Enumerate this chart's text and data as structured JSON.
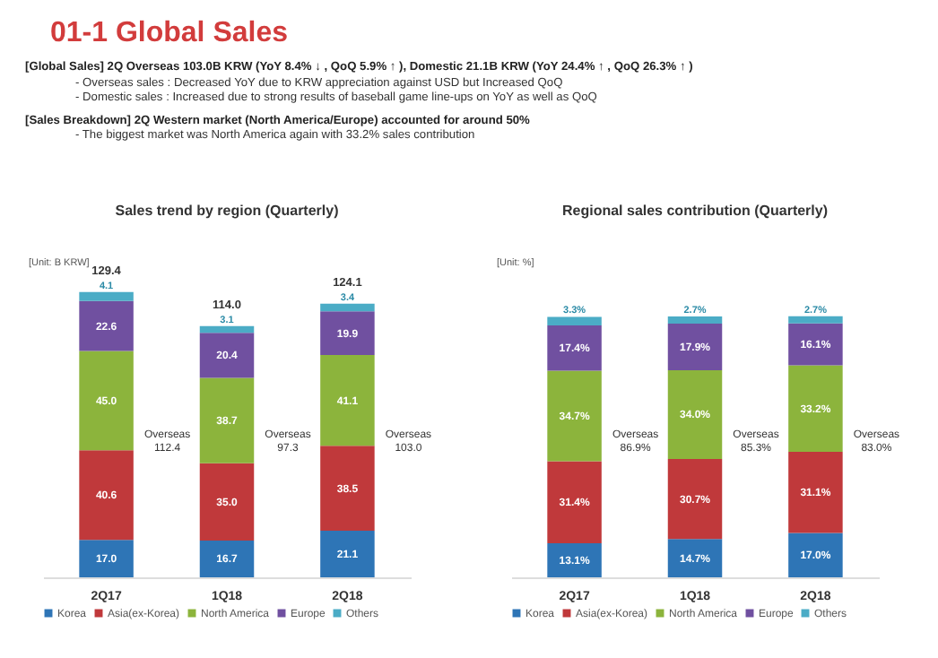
{
  "chart_data": [
    {
      "type": "other",
      "title": "01-1 Global Sales",
      "annotations": [
        "[Global Sales] 2Q Overseas 103.0B KRW (YoY 8.4% ↓ , QoQ 5.9% ↑ ), Domestic 21.1B KRW (YoY 24.4% ↑ , QoQ 26.3% ↑ )",
        "- Overseas sales : Decreased YoY due to KRW appreciation against USD but Increased QoQ",
        "- Domestic sales : Increased due to strong results of baseball game line-ups on YoY as well as QoQ",
        "[Sales Breakdown] 2Q Western market (North America/Europe) accounted for around 50%",
        "- The biggest market was North America again with 33.2% sales contribution"
      ]
    },
    {
      "type": "bar",
      "stacked": true,
      "title": "Sales trend by region (Quarterly)",
      "categories": [
        "2Q17",
        "1Q18",
        "2Q18"
      ],
      "legend": "bottom",
      "totals": [
        "129.4",
        "114.0",
        "124.1"
      ],
      "series": [
        {
          "name": "Korea",
          "color": "#2e75b6",
          "values": [
            17.0,
            16.7,
            21.1
          ],
          "value_labels": [
            "17.0",
            "16.7",
            "21.1"
          ]
        },
        {
          "name": "Asia(ex-Korea)",
          "color": "#c0393b",
          "values": [
            40.6,
            35.0,
            38.5
          ],
          "value_labels": [
            "40.6",
            "35.0",
            "38.5"
          ]
        },
        {
          "name": "North America",
          "color": "#8cb43c",
          "values": [
            45.0,
            38.7,
            41.1
          ],
          "value_labels": [
            "45.0",
            "38.7",
            "41.1"
          ]
        },
        {
          "name": "Europe",
          "color": "#7050a0",
          "values": [
            22.6,
            20.4,
            19.9
          ],
          "value_labels": [
            "22.6",
            "20.4",
            "19.9"
          ]
        },
        {
          "name": "Others",
          "color": "#4bacc6",
          "values": [
            4.1,
            3.1,
            3.4
          ],
          "value_labels": [
            "4.1",
            "3.1",
            "3.4"
          ]
        }
      ],
      "annotations": [
        "[Unit: B KRW]",
        "Overseas 112.4",
        "Overseas 97.3",
        "Overseas 103.0"
      ]
    },
    {
      "type": "bar",
      "stacked": true,
      "title": "Regional sales contribution (Quarterly)",
      "categories": [
        "2Q17",
        "1Q18",
        "2Q18"
      ],
      "legend": "bottom",
      "series": [
        {
          "name": "Korea",
          "color": "#2e75b6",
          "values": [
            13.1,
            14.7,
            17.0
          ],
          "value_labels": [
            "13.1%",
            "14.7%",
            "17.0%"
          ]
        },
        {
          "name": "Asia(ex-Korea)",
          "color": "#c0393b",
          "values": [
            31.4,
            30.7,
            31.1
          ],
          "value_labels": [
            "31.4%",
            "30.7%",
            "31.1%"
          ]
        },
        {
          "name": "North America",
          "color": "#8cb43c",
          "values": [
            34.7,
            34.0,
            33.2
          ],
          "value_labels": [
            "34.7%",
            "34.0%",
            "33.2%"
          ]
        },
        {
          "name": "Europe",
          "color": "#7050a0",
          "values": [
            17.4,
            17.9,
            16.1
          ],
          "value_labels": [
            "17.4%",
            "17.9%",
            "16.1%"
          ]
        },
        {
          "name": "Others",
          "color": "#4bacc6",
          "values": [
            3.3,
            2.7,
            2.7
          ],
          "value_labels": [
            "3.3%",
            "2.7%",
            "2.7%"
          ]
        }
      ],
      "annotations": [
        "[Unit: %]",
        "Overseas 86.9%",
        "Overseas 85.3%",
        "Overseas 83.0%"
      ]
    }
  ]
}
